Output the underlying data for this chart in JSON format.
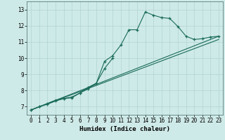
{
  "xlabel": "Humidex (Indice chaleur)",
  "background_color": "#ceeae8",
  "grid_color": "#b0d4d2",
  "line_color": "#1a6b5a",
  "xlim": [
    -0.5,
    23.5
  ],
  "ylim": [
    6.5,
    13.5
  ],
  "xticks": [
    0,
    1,
    2,
    3,
    4,
    5,
    6,
    7,
    8,
    9,
    10,
    11,
    12,
    13,
    14,
    15,
    16,
    17,
    18,
    19,
    20,
    21,
    22,
    23
  ],
  "yticks": [
    7,
    8,
    9,
    10,
    11,
    12,
    13
  ],
  "series1_x": [
    0,
    1,
    2,
    3,
    4,
    5,
    6,
    7,
    8,
    9,
    10,
    11,
    12,
    13,
    14,
    15,
    16,
    17,
    18,
    19,
    20,
    21,
    22,
    23
  ],
  "series1_y": [
    6.8,
    7.0,
    7.2,
    7.4,
    7.5,
    7.6,
    7.85,
    8.1,
    8.45,
    9.8,
    10.15,
    10.8,
    11.75,
    11.75,
    12.85,
    12.65,
    12.5,
    12.45,
    11.95,
    11.35,
    11.15,
    11.2,
    11.3,
    11.35
  ],
  "series2_x": [
    0,
    1,
    2,
    3,
    4,
    5,
    6,
    7,
    8,
    9,
    10
  ],
  "series2_y": [
    6.8,
    7.0,
    7.15,
    7.35,
    7.5,
    7.55,
    7.85,
    8.2,
    8.45,
    9.35,
    10.0
  ],
  "series3_x": [
    0,
    23
  ],
  "series3_y": [
    6.8,
    11.35
  ],
  "series4_x": [
    0,
    23
  ],
  "series4_y": [
    6.8,
    11.15
  ]
}
